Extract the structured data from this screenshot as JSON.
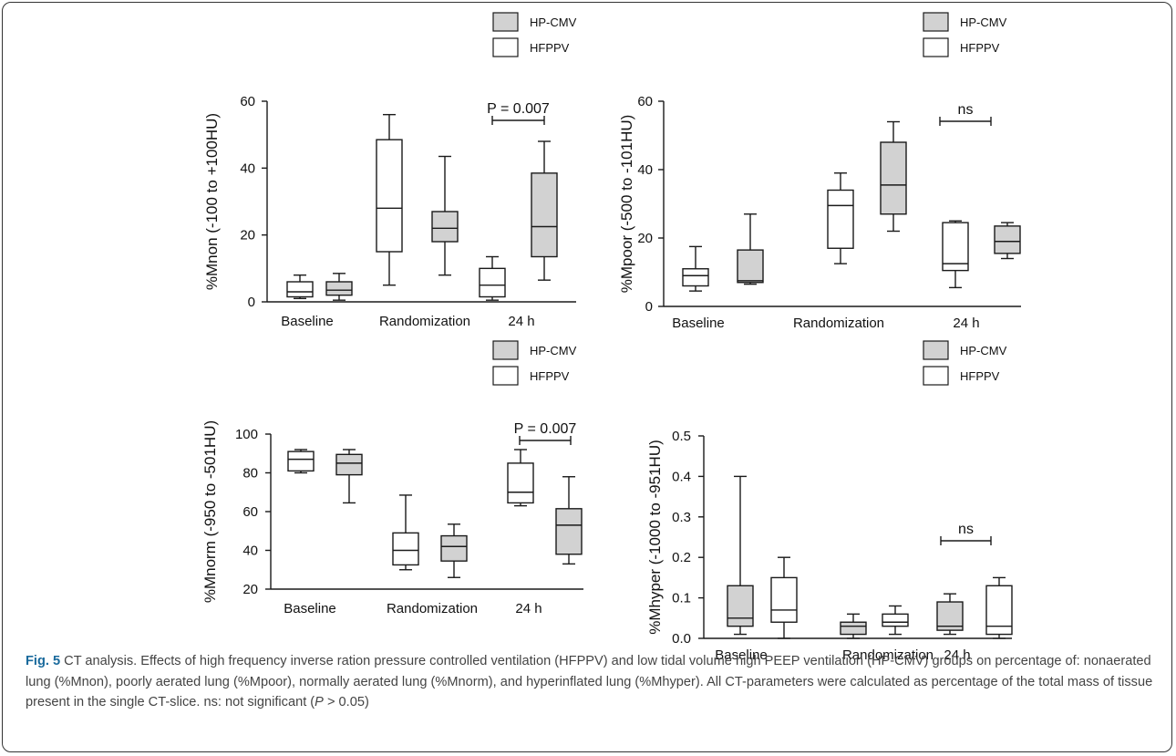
{
  "legend_labels": {
    "hpcmv": "HP-CMV",
    "hfppv": "HFPPV"
  },
  "caption": {
    "label": "Fig. 5",
    "text": " CT analysis. Effects of high frequency inverse ration pressure controlled ventilation (HFPPV) and low tidal volume high PEEP ventilation (HP-CMV) groups on percentage of: nonaerated lung (%Mnon), poorly aerated lung (%Mpoor), normally aerated lung (%Mnorm), and hyperinflated lung (%Mhyper). All CT-parameters were calculated as percentage of the total mass of tissue present in the single CT-slice. ns: not significant (",
    "p_symbol": "P",
    "text_end": " > 0.05)"
  },
  "colors": {
    "hfppv": "#ffffff",
    "hpcmv": "#d2d2d2",
    "line": "#1a1a1a",
    "caption_label": "#1a6a9c"
  },
  "chart_data": [
    {
      "type": "box",
      "ylabel": "%Mnon (-100 to +100HU)",
      "ylim": [
        0,
        60
      ],
      "yticks": [
        0,
        20,
        40,
        60
      ],
      "categories": [
        "Baseline",
        "Randomization",
        "24 h"
      ],
      "legend": [
        "HP-CMV",
        "HFPPV"
      ],
      "series": [
        {
          "name": "HFPPV",
          "boxes": [
            {
              "min": 1,
              "q1": 1.5,
              "median": 3,
              "q3": 6,
              "max": 8
            },
            {
              "min": 5,
              "q1": 15,
              "median": 28,
              "q3": 48.5,
              "max": 56
            },
            {
              "min": 0.5,
              "q1": 1.5,
              "median": 5,
              "q3": 10,
              "max": 13.5
            }
          ]
        },
        {
          "name": "HP-CMV",
          "boxes": [
            {
              "min": 0.5,
              "q1": 2,
              "median": 3.5,
              "q3": 6,
              "max": 8.5
            },
            {
              "min": 8,
              "q1": 18,
              "median": 22,
              "q3": 27,
              "max": 43.5
            },
            {
              "min": 6.5,
              "q1": 13.5,
              "median": 22.5,
              "q3": 38.5,
              "max": 48
            }
          ]
        }
      ],
      "annotation": "P = 0.007"
    },
    {
      "type": "box",
      "ylabel": "%Mpoor (-500 to -101HU)",
      "ylim": [
        0,
        60
      ],
      "yticks": [
        0,
        20,
        40,
        60
      ],
      "categories": [
        "Baseline",
        "Randomization",
        "24 h"
      ],
      "legend": [
        "HP-CMV",
        "HFPPV"
      ],
      "series": [
        {
          "name": "HFPPV",
          "boxes": [
            {
              "min": 4.5,
              "q1": 6,
              "median": 9,
              "q3": 11,
              "max": 17.5
            },
            {
              "min": 12.5,
              "q1": 17,
              "median": 29.5,
              "q3": 34,
              "max": 39
            },
            {
              "min": 5.5,
              "q1": 10.5,
              "median": 12.5,
              "q3": 24.5,
              "max": 25
            }
          ]
        },
        {
          "name": "HP-CMV",
          "boxes": [
            {
              "min": 6.5,
              "q1": 7,
              "median": 7.5,
              "q3": 16.5,
              "max": 27
            },
            {
              "min": 22,
              "q1": 27,
              "median": 35.5,
              "q3": 48,
              "max": 54
            },
            {
              "min": 14,
              "q1": 15.5,
              "median": 19,
              "q3": 23.5,
              "max": 24.5
            }
          ]
        }
      ],
      "annotation": "ns"
    },
    {
      "type": "box",
      "ylabel": "%Mnorm (-950 to -501HU)",
      "ylim": [
        20,
        100
      ],
      "yticks": [
        20,
        40,
        60,
        80,
        100
      ],
      "categories": [
        "Baseline",
        "Randomization",
        "24 h"
      ],
      "legend": [
        "HP-CMV",
        "HFPPV"
      ],
      "series": [
        {
          "name": "HFPPV",
          "boxes": [
            {
              "min": 80,
              "q1": 81,
              "median": 87,
              "q3": 91,
              "max": 92
            },
            {
              "min": 30,
              "q1": 32.5,
              "median": 40,
              "q3": 49,
              "max": 68.5
            },
            {
              "min": 63,
              "q1": 64.5,
              "median": 70,
              "q3": 85,
              "max": 92
            }
          ]
        },
        {
          "name": "HP-CMV",
          "boxes": [
            {
              "min": 64.5,
              "q1": 79,
              "median": 85,
              "q3": 89.5,
              "max": 92
            },
            {
              "min": 26,
              "q1": 34.5,
              "median": 42,
              "q3": 47.5,
              "max": 53.5
            },
            {
              "min": 33,
              "q1": 38,
              "median": 53,
              "q3": 61.5,
              "max": 78
            }
          ]
        }
      ],
      "annotation": "P = 0.007"
    },
    {
      "type": "box",
      "ylabel": "%Mhyper (-1000 to -951HU)",
      "ylim": [
        0,
        0.5
      ],
      "yticks": [
        "0.0",
        "0.1",
        "0.2",
        "0.3",
        "0.4",
        "0.5"
      ],
      "categories": [
        "Baseline",
        "Randomization",
        "24 h"
      ],
      "legend": [
        "HP-CMV",
        "HFPPV"
      ],
      "series": [
        {
          "name": "HP-CMV",
          "boxes": [
            {
              "min": 0.01,
              "q1": 0.03,
              "median": 0.05,
              "q3": 0.13,
              "max": 0.4
            },
            {
              "min": 0.0,
              "q1": 0.01,
              "median": 0.03,
              "q3": 0.04,
              "max": 0.06
            },
            {
              "min": 0.01,
              "q1": 0.02,
              "median": 0.03,
              "q3": 0.09,
              "max": 0.11
            }
          ]
        },
        {
          "name": "HFPPV",
          "boxes": [
            {
              "min": 0.0,
              "q1": 0.04,
              "median": 0.07,
              "q3": 0.15,
              "max": 0.2
            },
            {
              "min": 0.01,
              "q1": 0.03,
              "median": 0.04,
              "q3": 0.06,
              "max": 0.08
            },
            {
              "min": 0.0,
              "q1": 0.01,
              "median": 0.03,
              "q3": 0.13,
              "max": 0.15
            }
          ]
        }
      ],
      "annotation": "ns"
    }
  ]
}
